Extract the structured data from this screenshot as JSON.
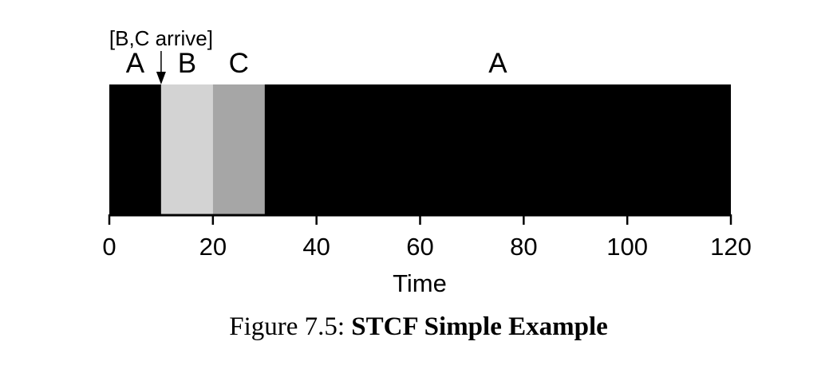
{
  "chart_data": {
    "type": "gantt",
    "segments": [
      {
        "job": "A",
        "start": 0,
        "end": 10,
        "color": "#000000"
      },
      {
        "job": "B",
        "start": 10,
        "end": 20,
        "color": "#d3d3d3"
      },
      {
        "job": "C",
        "start": 20,
        "end": 30,
        "color": "#a6a6a6"
      },
      {
        "job": "A",
        "start": 30,
        "end": 120,
        "color": "#000000"
      }
    ],
    "annotation": {
      "text": "[B,C arrive]",
      "x": 10
    },
    "xlabel": "Time",
    "xticks": [
      0,
      20,
      40,
      60,
      80,
      100,
      120
    ],
    "xlim": [
      0,
      120
    ]
  },
  "caption": {
    "prefix": "Figure 7.5:",
    "title": "STCF Simple Example"
  }
}
